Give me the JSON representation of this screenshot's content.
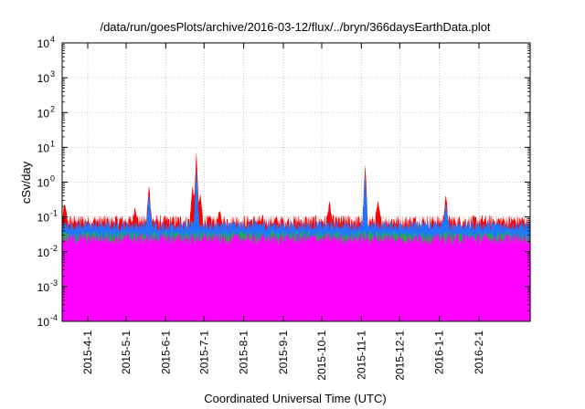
{
  "chart_data": {
    "type": "area",
    "title": "/data/run/goesPlots/archive/2016-03-12/flux/../bryn/366daysEarthData.plot",
    "xlabel": "Coordinated Universal Time (UTC)",
    "ylabel": "cSv/day",
    "yscale": "log",
    "ylim": [
      0.0001,
      10000
    ],
    "xlim": [
      "2015-03-12",
      "2016-03-12"
    ],
    "grid": true,
    "x_ticks": [
      "2015-4-1",
      "2015-5-1",
      "2015-6-1",
      "2015-7-1",
      "2015-8-1",
      "2015-9-1",
      "2015-10-1",
      "2015-11-1",
      "2015-12-1",
      "2016-1-1",
      "2016-2-1"
    ],
    "y_ticks": [
      {
        "base": "10",
        "exp": "4",
        "value": 10000
      },
      {
        "base": "10",
        "exp": "3",
        "value": 1000
      },
      {
        "base": "10",
        "exp": "2",
        "value": 100
      },
      {
        "base": "10",
        "exp": "1",
        "value": 10
      },
      {
        "base": "10",
        "exp": "0",
        "value": 1
      },
      {
        "base": "10",
        "exp": "-1",
        "value": 0.1
      },
      {
        "base": "10",
        "exp": "-2",
        "value": 0.01
      },
      {
        "base": "10",
        "exp": "-3",
        "value": 0.001
      },
      {
        "base": "10",
        "exp": "-4",
        "value": 0.0001
      }
    ],
    "series_colors": [
      "#ff0000",
      "#1e78ff",
      "#18b83c",
      "#ff00ff"
    ],
    "series": [
      {
        "color": "#ff0000",
        "baseline": 0.08,
        "spikes": [
          {
            "date": "2015-03-14",
            "value": 0.25
          },
          {
            "date": "2015-05-08",
            "value": 0.2
          },
          {
            "date": "2015-05-19",
            "value": 0.9
          },
          {
            "date": "2015-06-22",
            "value": 0.9
          },
          {
            "date": "2015-06-25",
            "value": 9.0
          },
          {
            "date": "2015-06-28",
            "value": 0.5
          },
          {
            "date": "2015-07-13",
            "value": 0.15
          },
          {
            "date": "2015-10-07",
            "value": 0.3
          },
          {
            "date": "2015-11-04",
            "value": 3.5
          },
          {
            "date": "2015-11-14",
            "value": 0.3
          },
          {
            "date": "2016-01-06",
            "value": 0.45
          }
        ]
      },
      {
        "color": "#1e78ff",
        "baseline": 0.06,
        "spikes": [
          {
            "date": "2015-05-19",
            "value": 0.5
          },
          {
            "date": "2015-06-25",
            "value": 3.0
          },
          {
            "date": "2015-11-04",
            "value": 2.0
          },
          {
            "date": "2016-01-06",
            "value": 0.25
          }
        ]
      },
      {
        "color": "#18b83c",
        "baseline": 0.03,
        "spikes": []
      },
      {
        "color": "#ff00ff",
        "baseline": 0.025,
        "floor": 0.005,
        "dropouts_to": 0.0001
      }
    ]
  }
}
